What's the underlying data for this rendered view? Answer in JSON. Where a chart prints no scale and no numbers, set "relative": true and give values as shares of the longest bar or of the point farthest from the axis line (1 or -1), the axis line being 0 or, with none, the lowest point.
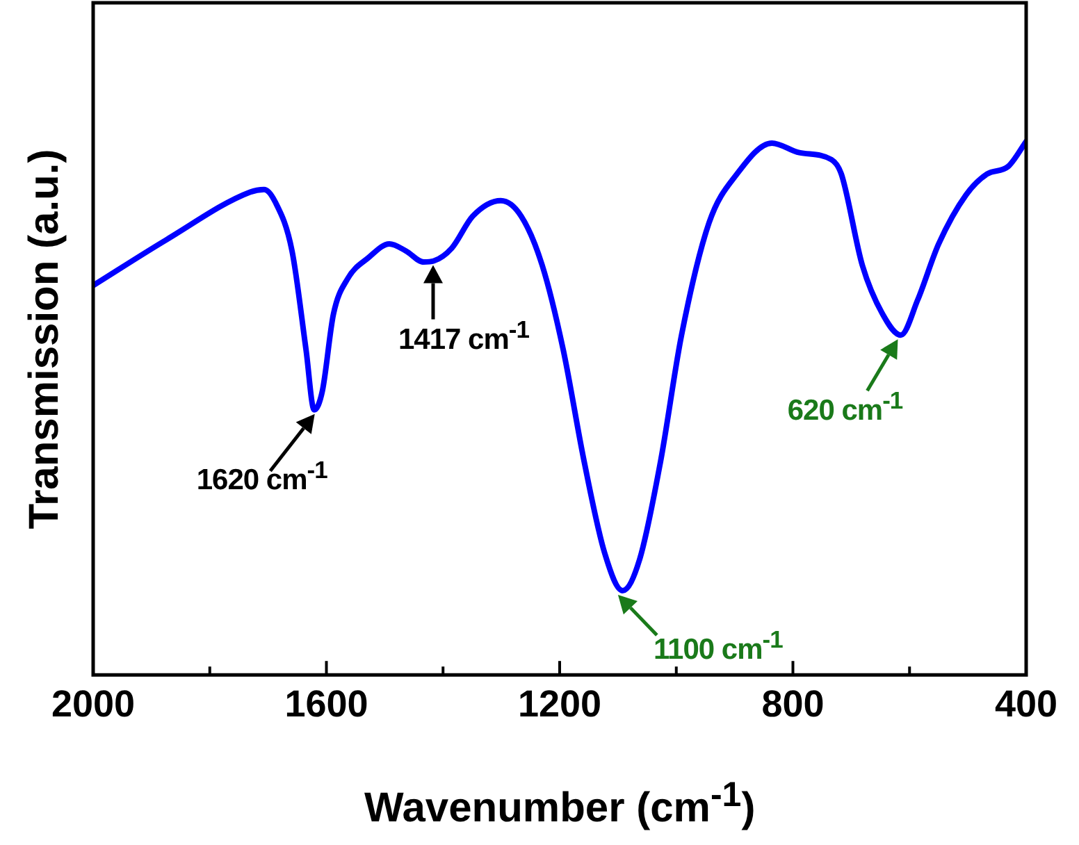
{
  "chart_data": {
    "type": "line",
    "xlabel": "Wavenumber (cm$^{-1}$)",
    "ylabel": "Transmission (a.u.)",
    "relative": true,
    "marker": "none",
    "line_style": "solid",
    "xlim": [
      2000,
      400
    ],
    "xticks": [
      2000,
      {
        "value": 1800,
        "label": null
      },
      1600,
      {
        "value": 1400,
        "label": null
      },
      1200,
      {
        "value": 1000,
        "label": null
      },
      800,
      {
        "value": 600,
        "label": null
      },
      400
    ],
    "x": [
      2000,
      1874,
      1731,
      1707,
      1688,
      1659,
      1635,
      1621,
      1607,
      1588,
      1564,
      1528,
      1492,
      1464,
      1433,
      1416,
      1385,
      1349,
      1301,
      1266,
      1230,
      1194,
      1158,
      1123,
      1092,
      1063,
      1027,
      991,
      944,
      896,
      836,
      789,
      734,
      717,
      681,
      646,
      615,
      586,
      550,
      503,
      467,
      431,
      400
    ],
    "series": [
      {
        "color": "#0000ff",
        "values": [
          0.73,
          0.816,
          0.905,
          0.91,
          0.887,
          0.795,
          0.61,
          0.497,
          0.532,
          0.676,
          0.742,
          0.782,
          0.808,
          0.795,
          0.774,
          0.776,
          0.8,
          0.86,
          0.889,
          0.86,
          0.768,
          0.61,
          0.4,
          0.229,
          0.158,
          0.216,
          0.4,
          0.637,
          0.847,
          0.939,
          0.997,
          0.979,
          0.966,
          0.939,
          0.768,
          0.676,
          0.637,
          0.703,
          0.808,
          0.9,
          0.939,
          0.953,
          1.0
        ]
      }
    ],
    "annotations": [
      {
        "text": "1620 cm$^{-1}$",
        "x": 1620,
        "y": 0.497
      },
      {
        "text": "1417 cm$^{-1}$",
        "x": 1417,
        "y": 0.776
      },
      {
        "text": "1100 cm$^{-1}$",
        "x": 1100,
        "y": 0.158
      },
      {
        "text": "620 cm$^{-1}$",
        "x": 620,
        "y": 0.637
      }
    ]
  }
}
